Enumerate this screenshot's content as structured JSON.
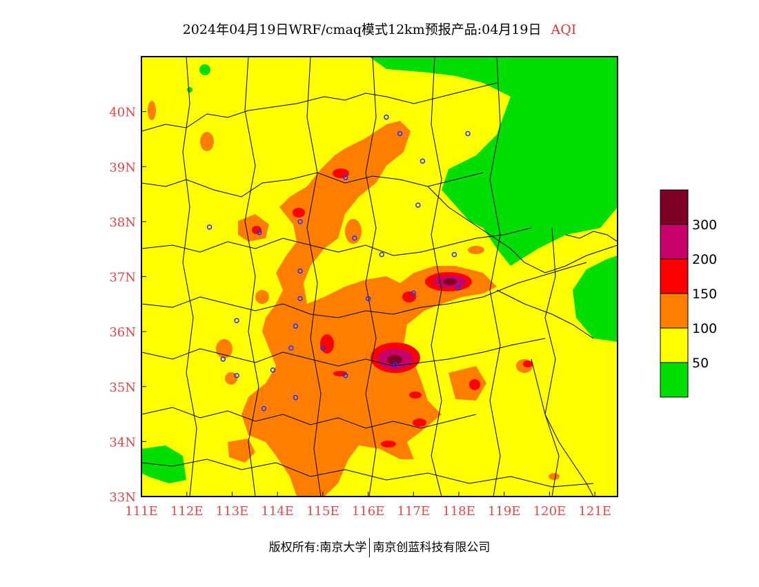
{
  "title": {
    "text": "2024年04月19日WRF/cmaq模式12km预报产品:04月19日",
    "product": "AQI"
  },
  "footer": {
    "left": "版权所有:南京大学",
    "right": "南京创蓝科技有限公司"
  },
  "map": {
    "lon_range": [
      111,
      121.5
    ],
    "lat_range": [
      33,
      41
    ],
    "x_ticks": [
      "111E",
      "112E",
      "113E",
      "114E",
      "115E",
      "116E",
      "117E",
      "118E",
      "119E",
      "120E",
      "121E"
    ],
    "y_ticks": [
      "33N",
      "34N",
      "35N",
      "36N",
      "37N",
      "38N",
      "39N",
      "40N"
    ],
    "tick_color": "#e04848",
    "background_level": "50-100"
  },
  "legend": {
    "levels": [
      {
        "range": "0-50",
        "color": "#00dd00"
      },
      {
        "range": "50-100",
        "color": "#ffff00"
      },
      {
        "range": "100-150",
        "color": "#ff7e00"
      },
      {
        "range": "150-200",
        "color": "#ff0000"
      },
      {
        "range": "200-300",
        "color": "#c8006a"
      },
      {
        "range": ">300",
        "color": "#7e0023"
      }
    ],
    "labels": [
      "50",
      "100",
      "150",
      "200",
      "300"
    ]
  },
  "stations": [
    [
      116.4,
      39.9
    ],
    [
      116.7,
      39.6
    ],
    [
      117.2,
      39.1
    ],
    [
      118.2,
      39.6
    ],
    [
      115.5,
      38.8
    ],
    [
      114.5,
      38.0
    ],
    [
      113.6,
      37.8
    ],
    [
      112.5,
      37.9
    ],
    [
      115.7,
      37.7
    ],
    [
      116.3,
      37.4
    ],
    [
      114.5,
      37.1
    ],
    [
      114.5,
      36.6
    ],
    [
      113.1,
      36.2
    ],
    [
      114.4,
      36.1
    ],
    [
      116.0,
      36.6
    ],
    [
      117.0,
      36.7
    ],
    [
      117.9,
      37.4
    ],
    [
      118.0,
      36.8
    ],
    [
      115.0,
      35.7
    ],
    [
      114.3,
      35.7
    ],
    [
      116.6,
      35.4
    ],
    [
      115.5,
      35.2
    ],
    [
      113.9,
      35.3
    ],
    [
      112.8,
      35.5
    ],
    [
      113.1,
      35.2
    ],
    [
      114.4,
      34.8
    ],
    [
      113.7,
      34.6
    ],
    [
      117.1,
      38.3
    ]
  ]
}
